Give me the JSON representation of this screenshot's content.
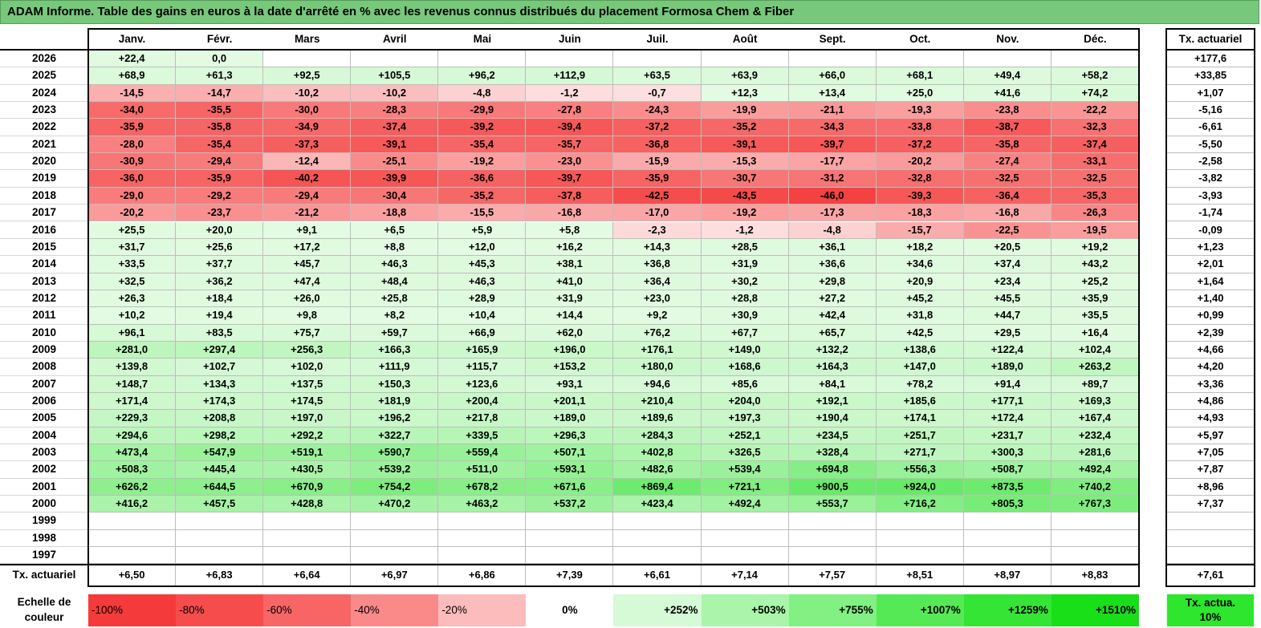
{
  "title": "ADAM Informe. Table des gains en euros à la date d'arrêté en % avec les revenus connus distribués du placement Formosa Chem & Fiber",
  "months": [
    "Janv.",
    "Févr.",
    "Mars",
    "Avril",
    "Mai",
    "Juin",
    "Juil.",
    "Août",
    "Sept.",
    "Oct.",
    "Nov.",
    "Déc."
  ],
  "rate_header": "Tx. actuariel",
  "rows": [
    {
      "year": "2026",
      "values": [
        "+22,4",
        "0,0",
        "",
        "",
        "",
        "",
        "",
        "",
        "",
        "",
        "",
        ""
      ],
      "rate": "+177,6"
    },
    {
      "year": "2025",
      "values": [
        "+68,9",
        "+61,3",
        "+92,5",
        "+105,5",
        "+96,2",
        "+112,9",
        "+63,5",
        "+63,9",
        "+66,0",
        "+68,1",
        "+49,4",
        "+58,2"
      ],
      "rate": "+33,85"
    },
    {
      "year": "2024",
      "values": [
        "-14,5",
        "-14,7",
        "-10,2",
        "-10,2",
        "-4,8",
        "-1,2",
        "-0,7",
        "+12,3",
        "+13,4",
        "+25,0",
        "+41,6",
        "+74,2"
      ],
      "rate": "+1,07"
    },
    {
      "year": "2023",
      "values": [
        "-34,0",
        "-35,5",
        "-30,0",
        "-28,3",
        "-29,9",
        "-27,8",
        "-24,3",
        "-19,9",
        "-21,1",
        "-19,3",
        "-23,8",
        "-22,2"
      ],
      "rate": "-5,16"
    },
    {
      "year": "2022",
      "values": [
        "-35,9",
        "-35,8",
        "-34,9",
        "-37,4",
        "-39,2",
        "-39,4",
        "-37,2",
        "-35,2",
        "-34,3",
        "-33,8",
        "-38,7",
        "-32,3"
      ],
      "rate": "-6,61"
    },
    {
      "year": "2021",
      "values": [
        "-28,0",
        "-35,4",
        "-37,3",
        "-39,1",
        "-35,4",
        "-35,7",
        "-36,8",
        "-39,1",
        "-39,7",
        "-37,2",
        "-35,8",
        "-37,4"
      ],
      "rate": "-5,50"
    },
    {
      "year": "2020",
      "values": [
        "-30,9",
        "-29,4",
        "-12,4",
        "-25,1",
        "-19,2",
        "-23,0",
        "-15,9",
        "-15,3",
        "-17,7",
        "-20,2",
        "-27,4",
        "-33,1"
      ],
      "rate": "-2,58"
    },
    {
      "year": "2019",
      "values": [
        "-36,0",
        "-35,9",
        "-40,2",
        "-39,9",
        "-36,6",
        "-39,7",
        "-35,9",
        "-30,7",
        "-31,2",
        "-32,8",
        "-32,5",
        "-32,5"
      ],
      "rate": "-3,82"
    },
    {
      "year": "2018",
      "values": [
        "-29,0",
        "-29,2",
        "-29,4",
        "-30,4",
        "-35,2",
        "-37,8",
        "-42,5",
        "-43,5",
        "-46,0",
        "-39,3",
        "-36,4",
        "-35,3"
      ],
      "rate": "-3,93"
    },
    {
      "year": "2017",
      "values": [
        "-20,2",
        "-23,7",
        "-21,2",
        "-18,8",
        "-15,5",
        "-16,8",
        "-17,0",
        "-19,2",
        "-17,3",
        "-18,3",
        "-16,8",
        "-26,3"
      ],
      "rate": "-1,74"
    },
    {
      "year": "2016",
      "values": [
        "+25,5",
        "+20,0",
        "+9,1",
        "+6,5",
        "+5,9",
        "+5,8",
        "-2,3",
        "-1,2",
        "-4,8",
        "-15,7",
        "-22,5",
        "-19,5"
      ],
      "rate": "-0,09"
    },
    {
      "year": "2015",
      "values": [
        "+31,7",
        "+25,6",
        "+17,2",
        "+8,8",
        "+12,0",
        "+16,2",
        "+14,3",
        "+28,5",
        "+36,1",
        "+18,2",
        "+20,5",
        "+19,2"
      ],
      "rate": "+1,23"
    },
    {
      "year": "2014",
      "values": [
        "+33,5",
        "+37,7",
        "+45,7",
        "+46,3",
        "+45,3",
        "+38,1",
        "+36,8",
        "+31,9",
        "+36,6",
        "+34,6",
        "+37,4",
        "+43,2"
      ],
      "rate": "+2,01"
    },
    {
      "year": "2013",
      "values": [
        "+32,5",
        "+36,2",
        "+47,4",
        "+48,4",
        "+46,3",
        "+41,0",
        "+36,4",
        "+30,2",
        "+29,8",
        "+20,9",
        "+23,4",
        "+25,2"
      ],
      "rate": "+1,64"
    },
    {
      "year": "2012",
      "values": [
        "+26,3",
        "+18,4",
        "+26,0",
        "+25,8",
        "+28,9",
        "+31,9",
        "+23,0",
        "+28,8",
        "+27,2",
        "+45,2",
        "+45,5",
        "+35,9"
      ],
      "rate": "+1,40"
    },
    {
      "year": "2011",
      "values": [
        "+10,2",
        "+19,4",
        "+9,8",
        "+8,2",
        "+10,4",
        "+14,4",
        "+9,2",
        "+30,9",
        "+42,4",
        "+31,8",
        "+44,7",
        "+35,5"
      ],
      "rate": "+0,99"
    },
    {
      "year": "2010",
      "values": [
        "+96,1",
        "+83,5",
        "+75,7",
        "+59,7",
        "+66,9",
        "+62,0",
        "+76,2",
        "+67,7",
        "+65,7",
        "+42,5",
        "+29,5",
        "+16,4"
      ],
      "rate": "+2,39"
    },
    {
      "year": "2009",
      "values": [
        "+281,0",
        "+297,4",
        "+256,3",
        "+166,3",
        "+165,9",
        "+196,0",
        "+176,1",
        "+149,0",
        "+132,2",
        "+138,6",
        "+122,4",
        "+102,4"
      ],
      "rate": "+4,66"
    },
    {
      "year": "2008",
      "values": [
        "+139,8",
        "+102,7",
        "+102,0",
        "+111,9",
        "+115,7",
        "+153,2",
        "+180,0",
        "+168,6",
        "+164,3",
        "+147,0",
        "+189,0",
        "+263,2"
      ],
      "rate": "+4,20"
    },
    {
      "year": "2007",
      "values": [
        "+148,7",
        "+134,3",
        "+137,5",
        "+150,3",
        "+123,6",
        "+93,1",
        "+94,6",
        "+85,6",
        "+84,1",
        "+78,2",
        "+91,4",
        "+89,7"
      ],
      "rate": "+3,36"
    },
    {
      "year": "2006",
      "values": [
        "+171,4",
        "+174,3",
        "+174,5",
        "+181,9",
        "+200,4",
        "+201,1",
        "+210,4",
        "+204,0",
        "+192,1",
        "+185,6",
        "+177,1",
        "+169,3"
      ],
      "rate": "+4,86"
    },
    {
      "year": "2005",
      "values": [
        "+229,3",
        "+208,8",
        "+197,0",
        "+196,2",
        "+217,8",
        "+189,0",
        "+189,6",
        "+197,3",
        "+190,4",
        "+174,1",
        "+172,4",
        "+167,4"
      ],
      "rate": "+4,93"
    },
    {
      "year": "2004",
      "values": [
        "+294,6",
        "+298,2",
        "+292,2",
        "+322,7",
        "+339,5",
        "+296,3",
        "+284,3",
        "+252,1",
        "+234,5",
        "+251,7",
        "+231,7",
        "+232,4"
      ],
      "rate": "+5,97"
    },
    {
      "year": "2003",
      "values": [
        "+473,4",
        "+547,9",
        "+519,1",
        "+590,7",
        "+559,4",
        "+507,1",
        "+402,8",
        "+326,5",
        "+328,4",
        "+271,7",
        "+300,3",
        "+281,6"
      ],
      "rate": "+7,05"
    },
    {
      "year": "2002",
      "values": [
        "+508,3",
        "+445,4",
        "+430,5",
        "+539,2",
        "+511,0",
        "+593,1",
        "+482,6",
        "+539,4",
        "+694,8",
        "+556,3",
        "+508,7",
        "+492,4"
      ],
      "rate": "+7,87"
    },
    {
      "year": "2001",
      "values": [
        "+626,2",
        "+644,5",
        "+670,9",
        "+754,2",
        "+678,2",
        "+671,6",
        "+869,4",
        "+721,1",
        "+900,5",
        "+924,0",
        "+873,5",
        "+740,2"
      ],
      "rate": "+8,96"
    },
    {
      "year": "2000",
      "values": [
        "+416,2",
        "+457,5",
        "+428,8",
        "+470,2",
        "+463,2",
        "+537,2",
        "+423,4",
        "+492,4",
        "+553,7",
        "+716,2",
        "+805,3",
        "+767,3"
      ],
      "rate": "+7,37"
    },
    {
      "year": "1999",
      "values": [
        "",
        "",
        "",
        "",
        "",
        "",
        "",
        "",
        "",
        "",
        "",
        ""
      ],
      "rate": ""
    },
    {
      "year": "1998",
      "values": [
        "",
        "",
        "",
        "",
        "",
        "",
        "",
        "",
        "",
        "",
        "",
        ""
      ],
      "rate": ""
    },
    {
      "year": "1997",
      "values": [
        "",
        "",
        "",
        "",
        "",
        "",
        "",
        "",
        "",
        "",
        "",
        ""
      ],
      "rate": ""
    }
  ],
  "footer": {
    "label": "Tx. actuariel",
    "values": [
      "+6,50",
      "+6,83",
      "+6,64",
      "+6,97",
      "+6,86",
      "+7,39",
      "+6,61",
      "+7,14",
      "+7,57",
      "+8,51",
      "+8,97",
      "+8,83"
    ],
    "rate": "+7,61"
  },
  "scale": {
    "label": "Echelle de couleur",
    "steps": [
      {
        "text": "-100%",
        "color": "#f43a3a",
        "align": "left"
      },
      {
        "text": "-80%",
        "color": "#f64c4c",
        "align": "left"
      },
      {
        "text": "-60%",
        "color": "#f86565",
        "align": "left"
      },
      {
        "text": "-40%",
        "color": "#fa8a8a",
        "align": "left"
      },
      {
        "text": "-20%",
        "color": "#fcbcbc",
        "align": "left"
      },
      {
        "text": "0%",
        "color": "#ffffff",
        "align": "center"
      },
      {
        "text": "+252%",
        "color": "#d5fad5",
        "align": "right"
      },
      {
        "text": "+503%",
        "color": "#aaf5aa",
        "align": "right"
      },
      {
        "text": "+755%",
        "color": "#82f082",
        "align": "right"
      },
      {
        "text": "+1007%",
        "color": "#55ea55",
        "align": "right"
      },
      {
        "text": "+1259%",
        "color": "#35e535",
        "align": "right"
      },
      {
        "text": "+1510%",
        "color": "#18df18",
        "align": "right"
      }
    ],
    "rate_label": "Tx. actua. 10%",
    "rate_color": "#2de62d"
  },
  "colors": {
    "banner": "#77c87a",
    "negative": "#f43a3a",
    "positive": "#18df18"
  }
}
